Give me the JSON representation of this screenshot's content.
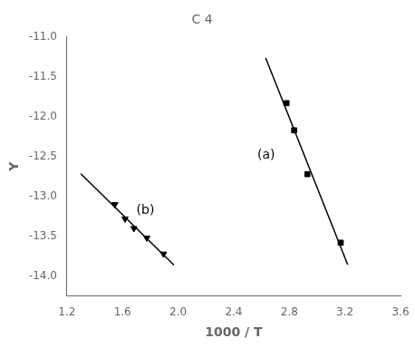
{
  "chart_data": {
    "type": "scatter",
    "title": "C 4",
    "xlabel": "1000 / T",
    "ylabel": "Y",
    "xlim": [
      1.2,
      3.6
    ],
    "ylim": [
      -14.25,
      -11.0
    ],
    "xticks": [
      1.2,
      1.6,
      {
        "value": 2.0,
        "label": "2.0"
      },
      2.4,
      2.8,
      3.2,
      3.6
    ],
    "yticks": [
      {
        "value": -14.0,
        "label": "-14.0"
      },
      -13.5,
      {
        "value": -13.0,
        "label": "-13.0"
      },
      -12.5,
      {
        "value": -12.0,
        "label": "-12.0"
      },
      -11.5,
      {
        "value": -11.0,
        "label": "-11.0"
      }
    ],
    "grid": false,
    "series": [
      {
        "name": "(a)",
        "color": "#000000",
        "marker": "square",
        "x": [
          2.78,
          2.835,
          2.93,
          3.17
        ],
        "values": [
          -11.83,
          -12.17,
          -12.72,
          -13.58
        ],
        "fit": {
          "x": [
            2.63,
            3.22
          ],
          "values": [
            -11.26285,
            -13.85421
          ]
        }
      },
      {
        "name": "(b)",
        "color": "#000000",
        "marker": "triangle_down",
        "x": [
          1.545,
          1.618,
          1.682,
          1.775,
          1.895
        ],
        "values": [
          -13.1,
          -13.28,
          -13.4,
          -13.52,
          -13.72
        ],
        "fit": {
          "x": [
            1.3,
            1.97
          ],
          "values": [
            -12.71497,
            -13.8605
          ]
        }
      }
    ]
  }
}
